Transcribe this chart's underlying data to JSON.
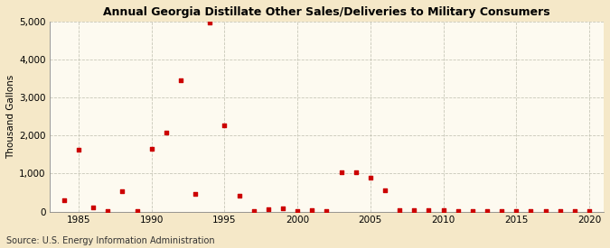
{
  "title": "Annual Georgia Distillate Other Sales/Deliveries to Military Consumers",
  "ylabel": "Thousand Gallons",
  "source": "Source: U.S. Energy Information Administration",
  "background_color": "#f5e8c8",
  "plot_bg_color": "#fdfaf0",
  "marker_color": "#cc0000",
  "xlim": [
    1983,
    2021
  ],
  "ylim": [
    0,
    5000
  ],
  "yticks": [
    0,
    1000,
    2000,
    3000,
    4000,
    5000
  ],
  "xticks": [
    1985,
    1990,
    1995,
    2000,
    2005,
    2010,
    2015,
    2020
  ],
  "data": {
    "1984": 290,
    "1985": 1620,
    "1986": 120,
    "1987": 10,
    "1988": 540,
    "1989": 10,
    "1990": 1650,
    "1991": 2090,
    "1992": 3460,
    "1993": 460,
    "1994": 4970,
    "1995": 2270,
    "1996": 410,
    "1997": 10,
    "1998": 60,
    "1999": 80,
    "2000": 10,
    "2001": 50,
    "2002": 10,
    "2003": 1040,
    "2004": 1040,
    "2005": 900,
    "2006": 570,
    "2007": 30,
    "2008": 50,
    "2009": 30,
    "2010": 30,
    "2011": 15,
    "2012": 15,
    "2013": 15,
    "2014": 15,
    "2015": 15,
    "2016": 15,
    "2017": 15,
    "2018": 15,
    "2019": 15,
    "2020": 15
  }
}
